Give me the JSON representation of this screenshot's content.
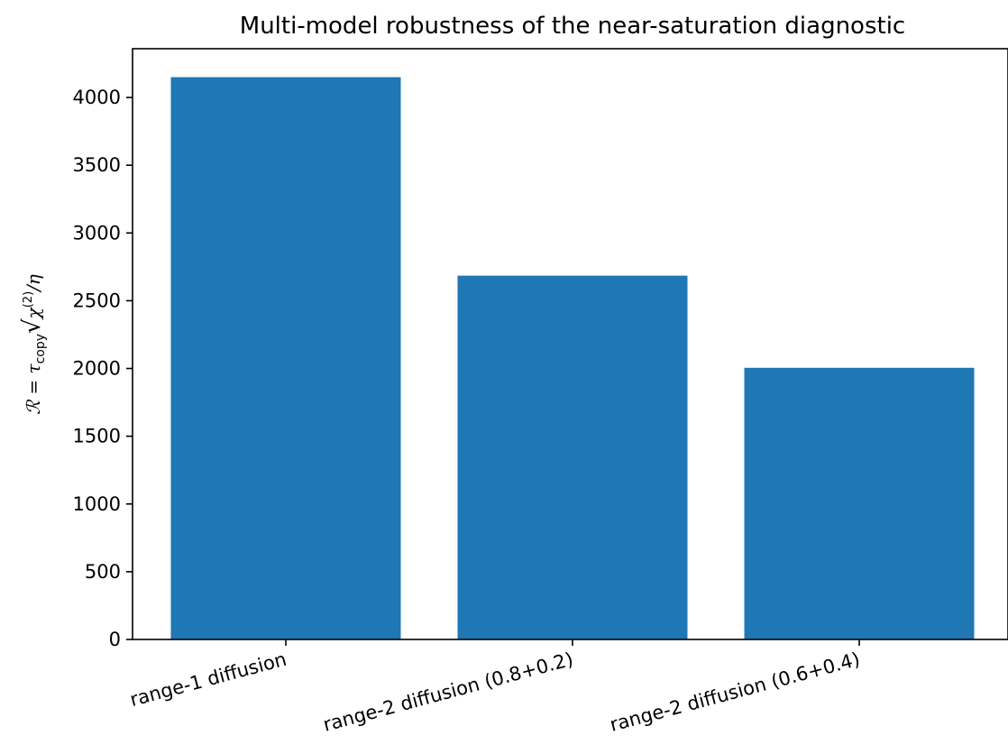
{
  "chart_data": {
    "type": "bar",
    "title": "Multi-model robustness of the near-saturation diagnostic",
    "xlabel": "",
    "ylabel": {
      "prefix": "ℛ = τ",
      "subscript": "copy",
      "radical": "√",
      "chi": "χ",
      "superscript": "(2)",
      "suffix": "/η"
    },
    "categories": [
      "range-1 diffusion",
      "range-2 diffusion (0.8+0.2)",
      "range-2 diffusion (0.6+0.4)"
    ],
    "values": [
      4150,
      2685,
      2005
    ],
    "ylim": [
      0,
      4360
    ],
    "yticks": [
      0,
      500,
      1000,
      1500,
      2000,
      2500,
      3000,
      3500,
      4000
    ],
    "bar_color": "#1f77b4",
    "grid": false,
    "legend": "none"
  }
}
